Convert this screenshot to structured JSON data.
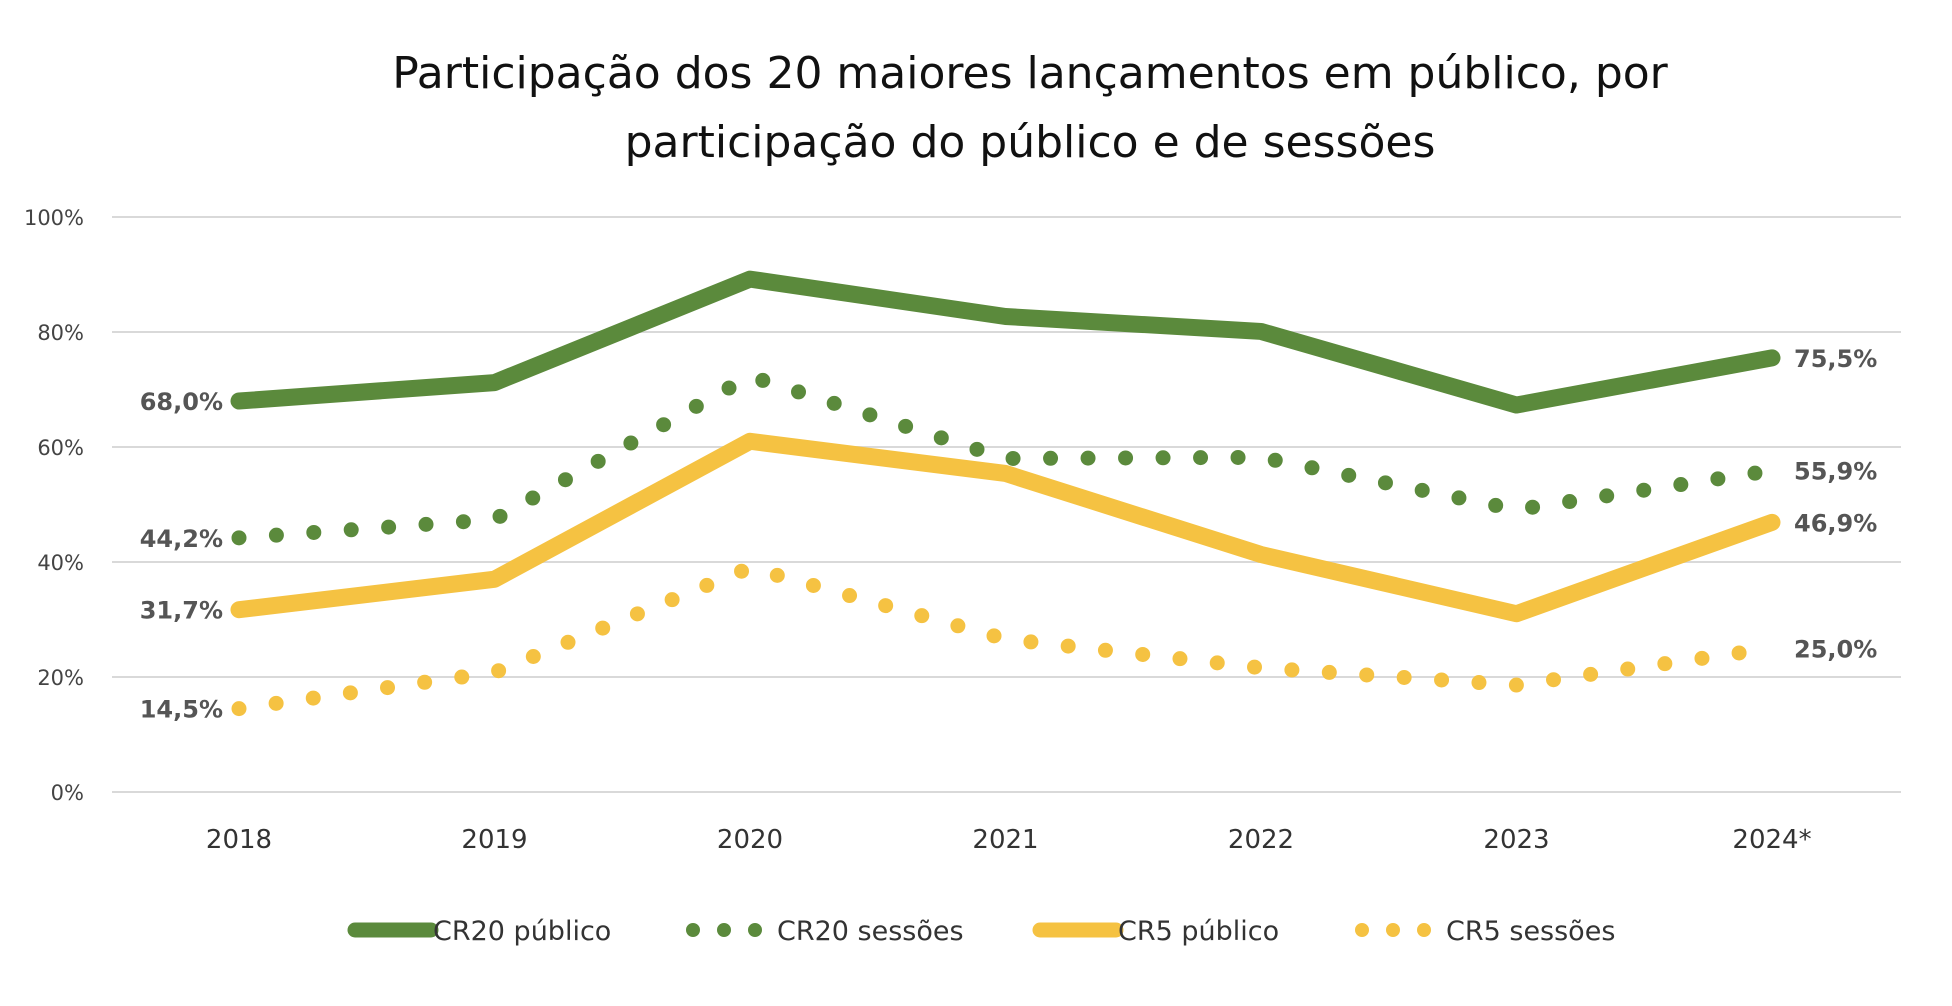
{
  "chart_data": {
    "type": "line",
    "title": [
      "Participação dos 20 maiores lançamentos em público, por",
      "participação do público e de sessões"
    ],
    "xlabel": "",
    "ylabel": "",
    "categories": [
      "2018",
      "2019",
      "2020",
      "2021",
      "2022",
      "2023",
      "2024*"
    ],
    "ylim": [
      0,
      100
    ],
    "yticks": [
      "0%",
      "20%",
      "40%",
      "60%",
      "80%",
      "100%"
    ],
    "ytick_values": [
      0,
      20,
      40,
      60,
      80,
      100
    ],
    "grid": true,
    "legend_position": "bottom",
    "series": [
      {
        "name": "CR20 público",
        "style": "solid",
        "color": "#5b8a3c",
        "values": [
          68.0,
          71.2,
          89.2,
          82.7,
          80.1,
          67.3,
          75.5
        ],
        "labels": {
          "first": "68,0%",
          "last": "75,5%"
        }
      },
      {
        "name": "CR20 sessões",
        "style": "dotted",
        "color": "#5b8a3c",
        "values": [
          44.2,
          47.4,
          72.3,
          58.0,
          58.2,
          49.1,
          55.9
        ],
        "labels": {
          "first": "44,2%",
          "last": "55,9%"
        }
      },
      {
        "name": "CR5 público",
        "style": "solid",
        "color": "#f5c242",
        "values": [
          31.7,
          37.0,
          61.0,
          55.4,
          41.3,
          31.0,
          46.9
        ],
        "labels": {
          "first": "31,7%",
          "last": "46,9%"
        }
      },
      {
        "name": "CR5 sessões",
        "style": "dotted",
        "color": "#f5c242",
        "values": [
          14.5,
          20.8,
          39.0,
          26.6,
          21.6,
          18.6,
          25.0
        ],
        "labels": {
          "first": "14,5%",
          "last": "25,0%"
        }
      }
    ]
  }
}
